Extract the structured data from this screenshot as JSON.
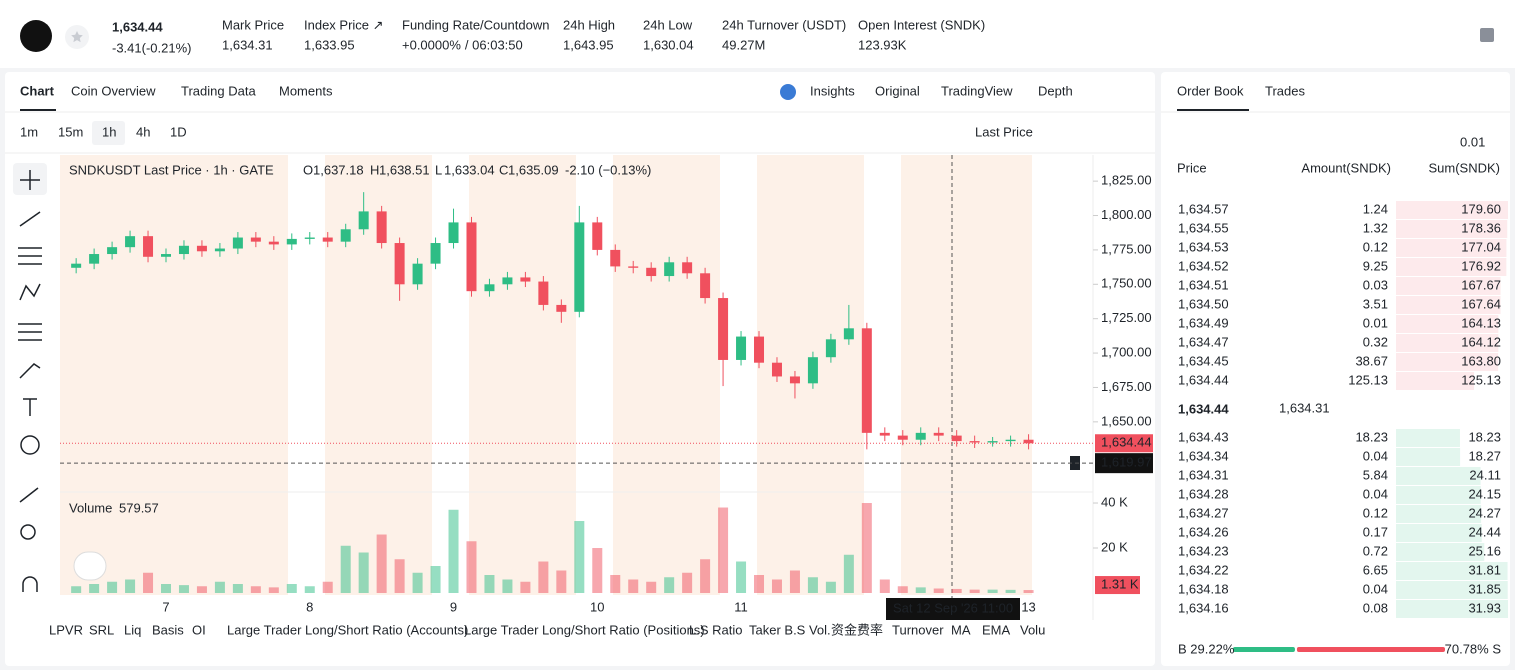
{
  "header": {
    "price": "1,634.44",
    "change": "-3.41(-0.21%)",
    "stats": [
      {
        "label": "Mark Price",
        "value": "1,634.31"
      },
      {
        "label": "Index Price ↗",
        "value": "1,633.95"
      },
      {
        "label": "Funding Rate/Countdown",
        "value": "+0.0000%",
        "extra": "/ 06:03:50"
      },
      {
        "label": "24h High",
        "value": "1,643.95"
      },
      {
        "label": "24h Low",
        "value": "1,630.04"
      },
      {
        "label": "24h Turnover (USDT)",
        "value": "49.27M"
      },
      {
        "label": "Open Interest (SNDK)",
        "value": "123.93K"
      }
    ]
  },
  "nav": {
    "tabs": [
      "Chart",
      "Coin Overview",
      "Trading Data",
      "Moments"
    ],
    "views": [
      "Insights",
      "Original",
      "TradingView",
      "Depth"
    ]
  },
  "toolbar": {
    "intervals": [
      "1m",
      "15m",
      "1h",
      "4h",
      "1D"
    ],
    "price_type": "Last Price"
  },
  "legend": {
    "title": "SNDKUSDT Last Price · 1h · GATE",
    "o_label": "O",
    "o": "1,637.18",
    "h_label": "H",
    "h": "1,638.51",
    "l_label": "L",
    "l": "1,633.04",
    "c_label": "C",
    "c": "1,635.09",
    "change": "-2.10 (−0.13%)",
    "volume_label": "Volume",
    "volume": "579.57"
  },
  "chart_data": {
    "type": "candlestick",
    "categories": [
      null,
      null,
      null,
      null,
      null,
      "7",
      null,
      null,
      null,
      null,
      null,
      null,
      null,
      "8",
      null,
      null,
      null,
      null,
      null,
      null,
      null,
      "9",
      null,
      null,
      null,
      null,
      null,
      null,
      null,
      "10",
      null,
      null,
      null,
      null,
      null,
      null,
      null,
      "11",
      null,
      null,
      null,
      null,
      null,
      null,
      null,
      null,
      null,
      null,
      null,
      null,
      null,
      null,
      null,
      "13"
    ],
    "open": [
      1762,
      1765,
      1772,
      1777,
      1785,
      1770,
      1772,
      1778,
      1774,
      1776,
      1784,
      1781,
      1779,
      1783,
      1784,
      1781,
      1790,
      1803,
      1780,
      1750,
      1765,
      1780,
      1795,
      1745,
      1750,
      1755,
      1752,
      1735,
      1730,
      1795,
      1775,
      1763,
      1762,
      1756,
      1766,
      1758,
      1740,
      1695,
      1712,
      1693,
      1683,
      1678,
      1697,
      1710,
      1718,
      1642,
      1640,
      1637,
      1642,
      1640,
      1636,
      1635,
      1636,
      1637
    ],
    "high": [
      1769,
      1776,
      1781,
      1789,
      1789,
      1776,
      1782,
      1782,
      1780,
      1788,
      1788,
      1785,
      1787,
      1788,
      1788,
      1794,
      1817,
      1807,
      1784,
      1769,
      1784,
      1805,
      1799,
      1754,
      1759,
      1759,
      1756,
      1739,
      1807,
      1799,
      1779,
      1767,
      1766,
      1770,
      1770,
      1762,
      1744,
      1716,
      1716,
      1697,
      1687,
      1701,
      1714,
      1735,
      1722,
      1646,
      1644,
      1646,
      1646,
      1644,
      1640,
      1639,
      1640,
      1641
    ],
    "low": [
      1758,
      1761,
      1768,
      1773,
      1766,
      1766,
      1768,
      1770,
      1770,
      1772,
      1777,
      1775,
      1775,
      1779,
      1777,
      1777,
      1786,
      1776,
      1738,
      1746,
      1761,
      1776,
      1741,
      1741,
      1746,
      1748,
      1731,
      1722,
      1726,
      1771,
      1759,
      1758,
      1752,
      1752,
      1754,
      1736,
      1676,
      1691,
      1689,
      1679,
      1667,
      1674,
      1693,
      1706,
      1630,
      1636,
      1633,
      1633,
      1636,
      1632,
      1631,
      1632,
      1632,
      1630
    ],
    "close": [
      1765,
      1772,
      1777,
      1785,
      1770,
      1772,
      1778,
      1774,
      1776,
      1784,
      1781,
      1779,
      1783,
      1784,
      1781,
      1790,
      1803,
      1780,
      1750,
      1765,
      1780,
      1795,
      1745,
      1750,
      1755,
      1752,
      1735,
      1730,
      1795,
      1775,
      1763,
      1762,
      1756,
      1766,
      1758,
      1740,
      1695,
      1712,
      1693,
      1683,
      1678,
      1697,
      1710,
      1718,
      1642,
      1640,
      1637,
      1642,
      1640,
      1636,
      1635,
      1636,
      1637,
      1634.44
    ],
    "volume": [
      3000,
      4000,
      5000,
      6000,
      9000,
      4000,
      3500,
      3000,
      5000,
      4000,
      3000,
      2500,
      4000,
      3000,
      5000,
      21000,
      18000,
      26000,
      15000,
      9000,
      12000,
      37000,
      23000,
      8000,
      6000,
      5000,
      14000,
      10000,
      32000,
      20000,
      8000,
      6000,
      5000,
      7000,
      9000,
      15000,
      38000,
      14000,
      8000,
      6000,
      10000,
      7000,
      5000,
      17000,
      40000,
      6000,
      3000,
      2500,
      2000,
      1800,
      1500,
      1500,
      1400,
      1310
    ],
    "up_color": "#2ebd85",
    "down_color": "#f0505e",
    "ylim": [
      1599,
      1844
    ],
    "yticks": [
      {
        "value": 1650,
        "label": "1,650.00"
      },
      {
        "value": 1675,
        "label": "1,675.00"
      },
      {
        "value": 1700,
        "label": "1,700.00"
      },
      {
        "value": 1725,
        "label": "1,725.00"
      },
      {
        "value": 1750,
        "label": "1,750.00"
      },
      {
        "value": 1775,
        "label": "1,775.00"
      },
      {
        "value": 1800,
        "label": "1,800.00"
      },
      {
        "value": 1825,
        "label": "1,825.00"
      }
    ],
    "volume_ylim": [
      0,
      44900
    ],
    "volume_yticks": [
      {
        "value": 20000,
        "label": "20 K"
      },
      {
        "value": 40000,
        "label": "40 K"
      }
    ],
    "price_line": {
      "value": 1634.44,
      "label": "1,634.44"
    },
    "crosshair_price": {
      "value": 1619.97,
      "label": "1,619.97"
    },
    "last_volume": {
      "value": 1310,
      "label": "1.31 K"
    },
    "crosshair_time": "Sat 12 Sep '26   11:00"
  },
  "indicators": [
    "LPVR",
    "SRL",
    "Liq",
    "Basis",
    "OI",
    "Large Trader Long/Short Ratio (Accounts)",
    "Large Trader Long/Short Ratio (Positions)",
    "L.S Ratio",
    "Taker B.S Vol.",
    "资金费率",
    "Turnover",
    "MA",
    "EMA",
    "Volu"
  ],
  "order_book": {
    "tabs": [
      "Order Book",
      "Trades"
    ],
    "step": "0.01",
    "columns": [
      "Price",
      "Amount(SNDK)",
      "Sum(SNDK)"
    ],
    "asks": [
      [
        "1,634.57",
        "1.24",
        "179.60"
      ],
      [
        "1,634.55",
        "1.32",
        "178.36"
      ],
      [
        "1,634.53",
        "0.12",
        "177.04"
      ],
      [
        "1,634.52",
        "9.25",
        "176.92"
      ],
      [
        "1,634.51",
        "0.03",
        "167.67"
      ],
      [
        "1,634.50",
        "3.51",
        "167.64"
      ],
      [
        "1,634.49",
        "0.01",
        "164.13"
      ],
      [
        "1,634.47",
        "0.32",
        "164.12"
      ],
      [
        "1,634.45",
        "38.67",
        "163.80"
      ],
      [
        "1,634.44",
        "125.13",
        "125.13"
      ]
    ],
    "mid_price": "1,634.44",
    "mark_price": "1,634.31",
    "bids": [
      [
        "1,634.43",
        "18.23",
        "18.23"
      ],
      [
        "1,634.34",
        "0.04",
        "18.27"
      ],
      [
        "1,634.31",
        "5.84",
        "24.11"
      ],
      [
        "1,634.28",
        "0.04",
        "24.15"
      ],
      [
        "1,634.27",
        "0.12",
        "24.27"
      ],
      [
        "1,634.26",
        "0.17",
        "24.44"
      ],
      [
        "1,634.23",
        "0.72",
        "25.16"
      ],
      [
        "1,634.22",
        "6.65",
        "31.81"
      ],
      [
        "1,634.18",
        "0.04",
        "31.85"
      ],
      [
        "1,634.16",
        "0.08",
        "31.93"
      ]
    ],
    "buy": {
      "value": 29.22,
      "label": "B 29.22%"
    },
    "sell": {
      "value": 70.78,
      "label": "70.78% S"
    }
  }
}
